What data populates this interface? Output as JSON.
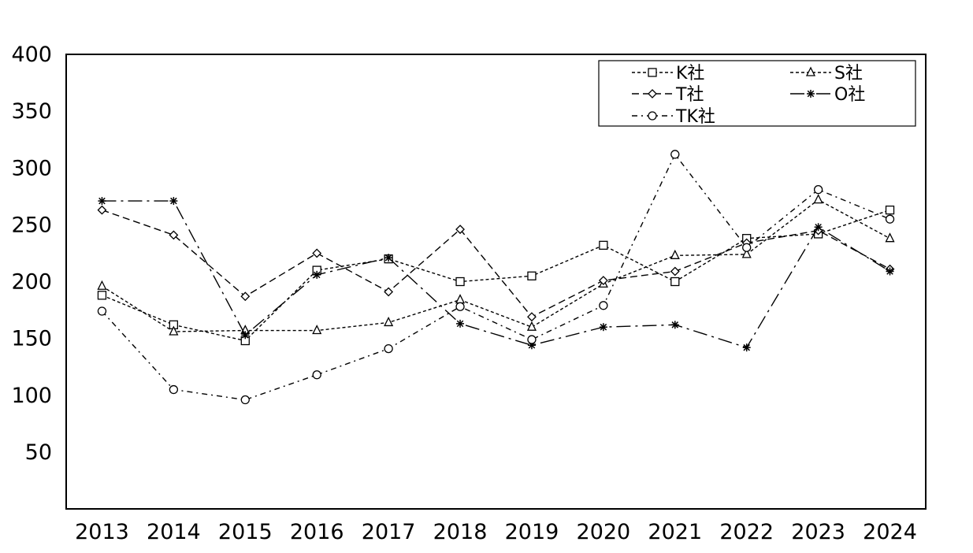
{
  "chart_data": {
    "type": "line",
    "title": "",
    "xlabel": "",
    "ylabel": "",
    "x": [
      "2013",
      "2014",
      "2015",
      "2016",
      "2017",
      "2018",
      "2019",
      "2020",
      "2021",
      "2022",
      "2023",
      "2024"
    ],
    "ylim": [
      0,
      400
    ],
    "yticks": [
      50,
      100,
      150,
      200,
      250,
      300,
      350,
      400
    ],
    "grid": false,
    "legend": "top-right",
    "series": [
      {
        "name": "K社",
        "marker": "square",
        "dash": "short-dash",
        "values": [
          188,
          162,
          148,
          210,
          220,
          200,
          205,
          232,
          200,
          238,
          242,
          263
        ]
      },
      {
        "name": "S社",
        "marker": "triangle",
        "dash": "short-dash",
        "values": [
          196,
          156,
          157,
          157,
          164,
          184,
          160,
          198,
          223,
          224,
          272,
          238
        ]
      },
      {
        "name": "T社",
        "marker": "diamond",
        "dash": "long-dash",
        "values": [
          263,
          241,
          187,
          225,
          191,
          246,
          169,
          201,
          209,
          234,
          245,
          211
        ]
      },
      {
        "name": "O社",
        "marker": "asterisk",
        "dash": "long-dash-dot",
        "values": [
          271,
          271,
          153,
          206,
          221,
          163,
          144,
          160,
          162,
          142,
          248,
          209
        ]
      },
      {
        "name": "TK社",
        "marker": "circle",
        "dash": "dash-dot",
        "values": [
          174,
          105,
          96,
          118,
          141,
          178,
          149,
          179,
          312,
          230,
          281,
          255
        ]
      }
    ]
  }
}
